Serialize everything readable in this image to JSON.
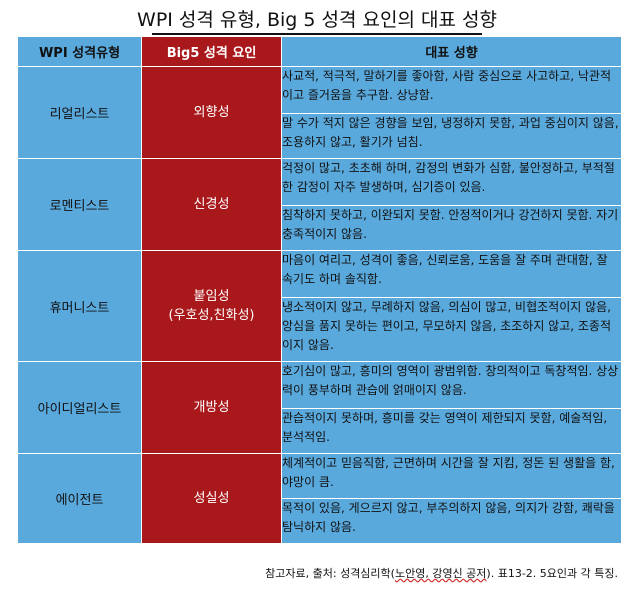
{
  "title": "WPI 성격 유형, Big 5 성격 요인의 대표 성향",
  "headers": {
    "col1": "WPI 성격유형",
    "col2": "Big5 성격 요인",
    "col3": "대표 성향"
  },
  "rows": [
    {
      "type": "리얼리스트",
      "trait": "외향성",
      "trait_sub": "",
      "high": "사교적, 적극적, 말하기를 좋아함, 사람 중심으로 사고하고, 낙관적이고 즐거움을 추구함. 상냥함.",
      "low": "말 수가 적지 않은 경향을 보임, 냉정하지 못함, 과업 중심이지 않음, 조용하지 않고, 활기가 넘침."
    },
    {
      "type": "로멘티스트",
      "trait": "신경성",
      "trait_sub": "",
      "high": "걱정이 많고, 초초해 하며, 감정의 변화가 심함, 불안정하고, 부적절한 감정이 자주 발생하며, 심기증이 있음.",
      "low": "침착하지 못하고, 이완되지 못함. 안정적이거나 강건하지 못함. 자기충족적이지 않음."
    },
    {
      "type": "휴머니스트",
      "trait": "붙임성",
      "trait_sub": "(우호성,친화성)",
      "high": "마음이 여리고, 성격이 좋음, 신뢰로움, 도움을 잘 주며 관대함, 잘 속기도 하며 솔직함.",
      "low": "냉소적이지 않고, 무례하지 않음, 의심이 많고, 비협조적이지 않음, 앙심을 품지 못하는 편이고, 무모하지 않음, 초조하지 않고, 조종적이지 않음."
    },
    {
      "type": "아이디얼리스트",
      "trait": "개방성",
      "trait_sub": "",
      "high": "호기심이 많고, 흥미의 영역이 광범위함. 창의적이고 독창적임. 상상력이 풍부하며 관습에 얽매이지 않음.",
      "low": "관습적이지 못하며, 흥미를 갖는 영역이 제한되지 못함, 예술적임, 분석적임."
    },
    {
      "type": "에이전트",
      "trait": "성실성",
      "trait_sub": "",
      "high": "체계적이고 믿음직함, 근면하며 시간을 잘 지킴, 정돈 된 생활을 함, 야망이 큼.",
      "low": "목적이 있음, 게으르지 않고, 부주의하지 않음, 의지가 강함, 쾌락을 탐닉하지 않음."
    }
  ],
  "footnote": {
    "prefix": "참고자료, 출처: 성격심리학(",
    "authors": "노안영, 강영신 공저",
    "suffix": "). 표13-2. 5요인과 각 특징."
  }
}
